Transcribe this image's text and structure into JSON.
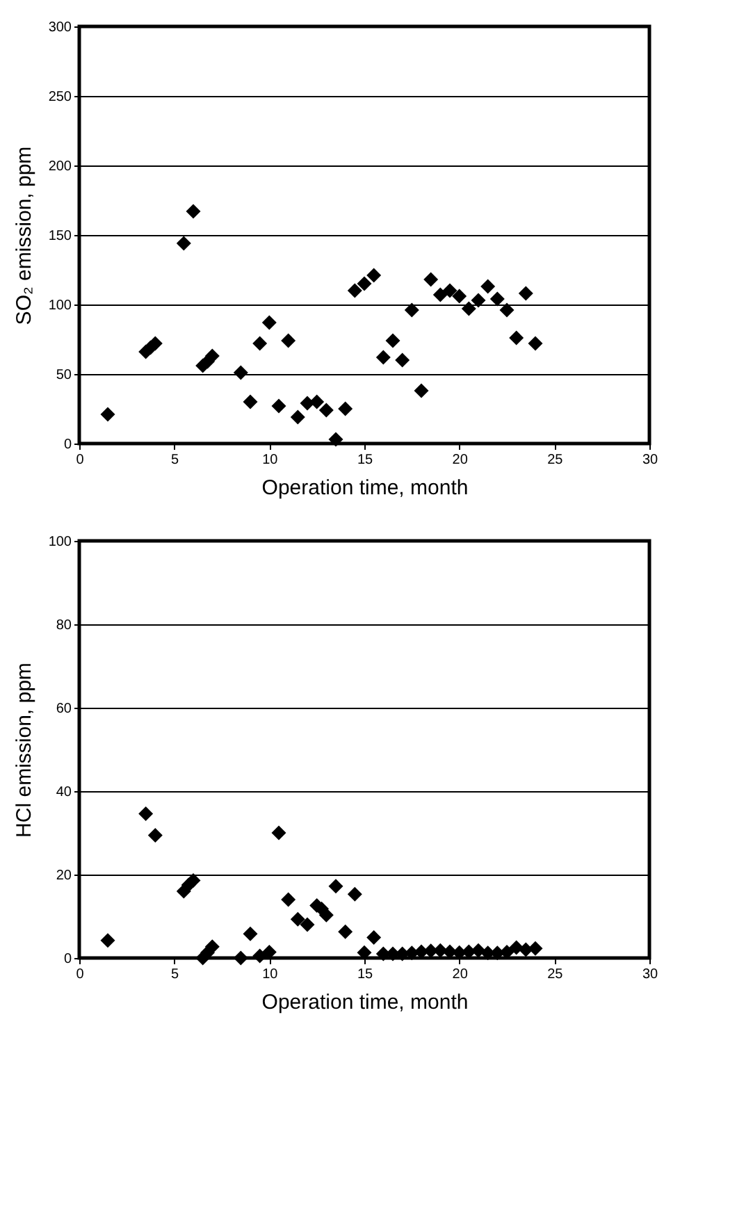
{
  "chart_data": [
    {
      "type": "scatter",
      "xlabel": "Operation time, month",
      "ylabel": "SO₂ emission, ppm",
      "xlim": [
        0,
        30
      ],
      "ylim": [
        0,
        300
      ],
      "xticks": [
        0,
        5,
        10,
        15,
        20,
        25,
        30
      ],
      "yticks": [
        0,
        50,
        100,
        150,
        200,
        250,
        300
      ],
      "grid": "y",
      "marker": "diamond",
      "series": [
        {
          "color": "#000000",
          "x": [
            1.5,
            3.5,
            3.75,
            4,
            5.5,
            6,
            6.5,
            6.75,
            7,
            8.5,
            9,
            9.5,
            10,
            10.5,
            11,
            11.5,
            12,
            12.5,
            13,
            13.5,
            14,
            14.5,
            15,
            15.5,
            16,
            16.5,
            17,
            17.5,
            18,
            18.5,
            19,
            19.5,
            20,
            20.5,
            21,
            21.5,
            22,
            22.5,
            23,
            23.5,
            24
          ],
          "values": [
            21,
            66,
            69,
            72,
            144,
            167,
            56,
            59,
            63,
            51,
            30,
            72,
            87,
            27,
            74,
            19,
            29,
            30,
            24,
            3,
            25,
            110,
            115,
            121,
            62,
            74,
            60,
            96,
            38,
            118,
            107,
            110,
            106,
            97,
            103,
            113,
            104,
            96,
            76,
            108,
            72
          ]
        }
      ]
    },
    {
      "type": "scatter",
      "xlabel": "Operation time, month",
      "ylabel": "HCl emission, ppm",
      "xlim": [
        0,
        30
      ],
      "ylim": [
        0,
        100
      ],
      "xticks": [
        0,
        5,
        10,
        15,
        20,
        25,
        30
      ],
      "yticks": [
        0,
        20,
        40,
        60,
        80,
        100
      ],
      "grid": "y",
      "marker": "diamond",
      "series": [
        {
          "color": "#000000",
          "x": [
            1.5,
            3.5,
            4,
            5.5,
            5.75,
            6,
            6.5,
            6.75,
            7,
            8.5,
            9,
            9.5,
            10,
            10.5,
            11,
            11.5,
            12,
            12.5,
            12.75,
            13,
            13.5,
            14,
            14.5,
            15,
            15.5,
            16,
            16.5,
            17,
            17.5,
            18,
            18.5,
            19,
            19.5,
            20,
            20.5,
            21,
            21.5,
            22,
            22.5,
            23,
            23.5,
            24
          ],
          "values": [
            4.2,
            34.6,
            29.4,
            16,
            17.5,
            18.6,
            0,
            1.3,
            2.7,
            0,
            5.8,
            0.5,
            1.4,
            30,
            14,
            9.3,
            8,
            12.6,
            11.8,
            10.3,
            17.2,
            6.3,
            15.3,
            1.3,
            4.9,
            1,
            1,
            1,
            1.2,
            1.5,
            1.7,
            1.8,
            1.5,
            1.3,
            1.5,
            1.8,
            1.2,
            1.2,
            1.4,
            2.5,
            2,
            2.3
          ]
        }
      ]
    }
  ]
}
